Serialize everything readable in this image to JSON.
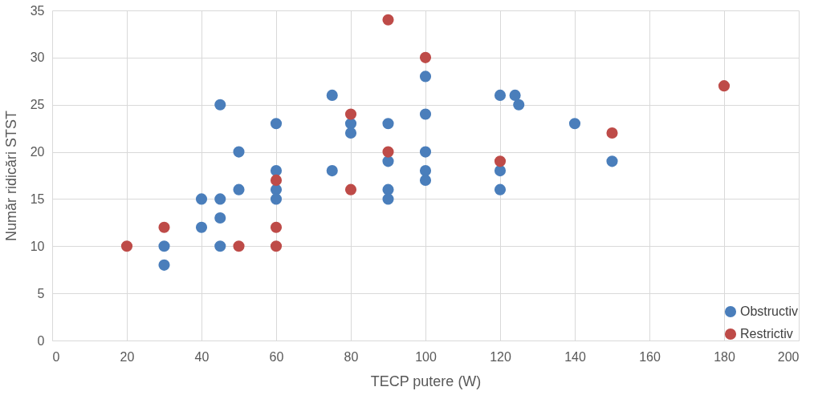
{
  "chart_data": {
    "type": "scatter",
    "xlabel": "TECP putere (W)",
    "ylabel": "Număr ridicări STST",
    "xlim": [
      0,
      200
    ],
    "xticks": [
      0,
      20,
      40,
      60,
      80,
      100,
      120,
      140,
      160,
      180,
      200
    ],
    "ylim": [
      0,
      35
    ],
    "yticks": [
      0,
      5,
      10,
      15,
      20,
      25,
      30,
      35
    ],
    "grid": true,
    "legend": "bottom right",
    "marker": "circle",
    "series": [
      {
        "name": "Obstructiv",
        "color": "#4a7ebb",
        "x": [
          30,
          30,
          40,
          40,
          45,
          45,
          45,
          45,
          50,
          50,
          60,
          60,
          60,
          60,
          75,
          75,
          80,
          80,
          90,
          90,
          90,
          90,
          100,
          100,
          100,
          100,
          100,
          120,
          120,
          120,
          124,
          125,
          140,
          150
        ],
        "values": [
          10,
          8,
          15,
          12,
          25,
          15,
          13,
          10,
          20,
          16,
          23,
          18,
          16,
          15,
          26,
          18,
          23,
          22,
          23,
          19,
          16,
          15,
          28,
          24,
          20,
          18,
          17,
          26,
          18,
          16,
          26,
          25,
          23,
          19
        ]
      },
      {
        "name": "Restrictiv",
        "color": "#be4b48",
        "x": [
          20,
          30,
          50,
          60,
          60,
          60,
          80,
          80,
          90,
          90,
          100,
          120,
          150,
          180
        ],
        "values": [
          10,
          12,
          10,
          17,
          12,
          10,
          24,
          16,
          34,
          20,
          30,
          19,
          22,
          27
        ]
      }
    ]
  }
}
